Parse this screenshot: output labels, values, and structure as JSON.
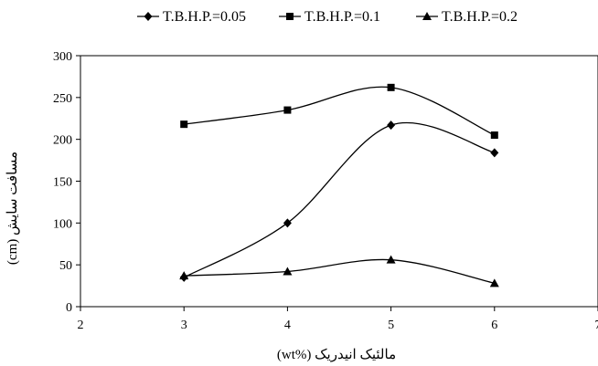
{
  "chart_data": {
    "type": "line",
    "smooth": true,
    "xlabel": "مالئیک انیدریک (%wt)",
    "ylabel": "مسافت سایش (cm)",
    "xlim": [
      2,
      7
    ],
    "ylim": [
      0,
      300
    ],
    "xticks": [
      "2",
      "3",
      "4",
      "5",
      "6",
      "7"
    ],
    "yticks": [
      "0",
      "50",
      "100",
      "150",
      "200",
      "250",
      "300"
    ],
    "grid": false,
    "legend_position": "top",
    "series": [
      {
        "name": "T.B.H.P.=0.05",
        "marker": "diamond",
        "x": [
          3,
          4,
          5,
          6
        ],
        "values": [
          35,
          100,
          217,
          184
        ]
      },
      {
        "name": "T.B.H.P.=0.1",
        "marker": "square",
        "x": [
          3,
          4,
          5,
          6
        ],
        "values": [
          218,
          235,
          262,
          205
        ]
      },
      {
        "name": "T.B.H.P.=0.2",
        "marker": "triangle",
        "x": [
          3,
          4,
          5,
          6
        ],
        "values": [
          37,
          42,
          56,
          28
        ]
      }
    ],
    "line_color": "#000000"
  }
}
